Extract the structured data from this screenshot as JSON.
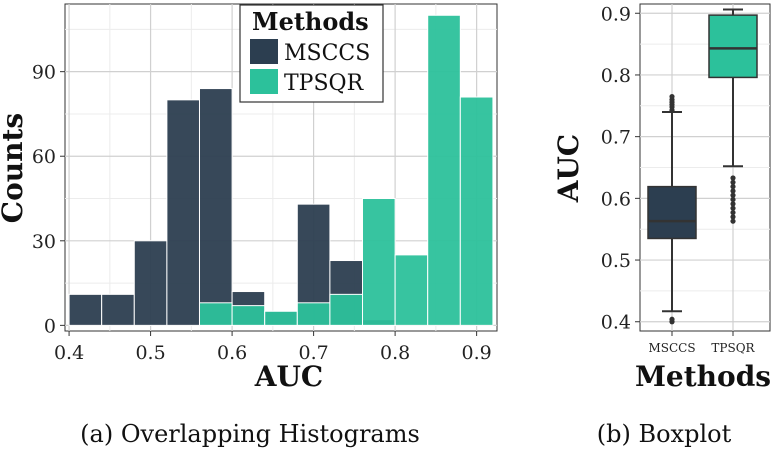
{
  "chart_data": [
    {
      "type": "bar",
      "subtype": "overlapping-histogram",
      "caption": "(a) Overlapping Histograms",
      "xlabel": "AUC",
      "ylabel": "Counts",
      "xlim": [
        0.395,
        0.925
      ],
      "ylim": [
        -2,
        114
      ],
      "xticks": [
        0.4,
        0.5,
        0.6,
        0.7,
        0.8,
        0.9
      ],
      "xtick_labels": [
        "0.4",
        "0.5",
        "0.6",
        "0.7",
        "0.8",
        "0.9"
      ],
      "yticks": [
        0,
        30,
        60,
        90
      ],
      "ytick_labels": [
        "0",
        "30",
        "60",
        "90"
      ],
      "bin_width": 0.04,
      "grid": true,
      "legend": {
        "title": "Methods",
        "position": "top-center",
        "entries": [
          {
            "label": "MSCCS",
            "color": "#2c3e50"
          },
          {
            "label": "TPSQR",
            "color": "#2cc19b"
          }
        ]
      },
      "series": [
        {
          "name": "MSCCS",
          "color": "#2c3e50",
          "bin_starts": [
            0.4,
            0.44,
            0.48,
            0.52,
            0.56,
            0.6,
            0.64,
            0.68,
            0.72,
            0.76
          ],
          "values": [
            11,
            11,
            30,
            80,
            84,
            12,
            5,
            43,
            23,
            2
          ]
        },
        {
          "name": "TPSQR",
          "color": "#2cc19b",
          "bin_starts": [
            0.56,
            0.6,
            0.64,
            0.68,
            0.72,
            0.76,
            0.8,
            0.84,
            0.88
          ],
          "values": [
            8,
            7,
            5,
            8,
            11,
            45,
            25,
            110,
            81
          ]
        }
      ]
    },
    {
      "type": "boxplot",
      "caption": "(b) Boxplot",
      "xlabel": "Methods",
      "ylabel": "AUC",
      "ylim": [
        0.385,
        0.915
      ],
      "yticks": [
        0.4,
        0.5,
        0.6,
        0.7,
        0.8,
        0.9
      ],
      "ytick_labels": [
        "0.4",
        "0.5",
        "0.6",
        "0.7",
        "0.8",
        "0.9"
      ],
      "categories": [
        "MSCCS",
        "TPSQR"
      ],
      "grid": true,
      "boxes": [
        {
          "name": "MSCCS",
          "color": "#2c3e50",
          "whisker_low": 0.417,
          "q1": 0.535,
          "median": 0.563,
          "q3": 0.619,
          "whisker_high": 0.74,
          "outliers": [
            0.4,
            0.404,
            0.743,
            0.748,
            0.752,
            0.756,
            0.76,
            0.765
          ]
        },
        {
          "name": "TPSQR",
          "color": "#2cc19b",
          "whisker_low": 0.652,
          "q1": 0.796,
          "median": 0.843,
          "q3": 0.897,
          "whisker_high": 0.906,
          "outliers": [
            0.563,
            0.57,
            0.577,
            0.584,
            0.591,
            0.598,
            0.605,
            0.612,
            0.619,
            0.626,
            0.633
          ]
        }
      ]
    }
  ]
}
